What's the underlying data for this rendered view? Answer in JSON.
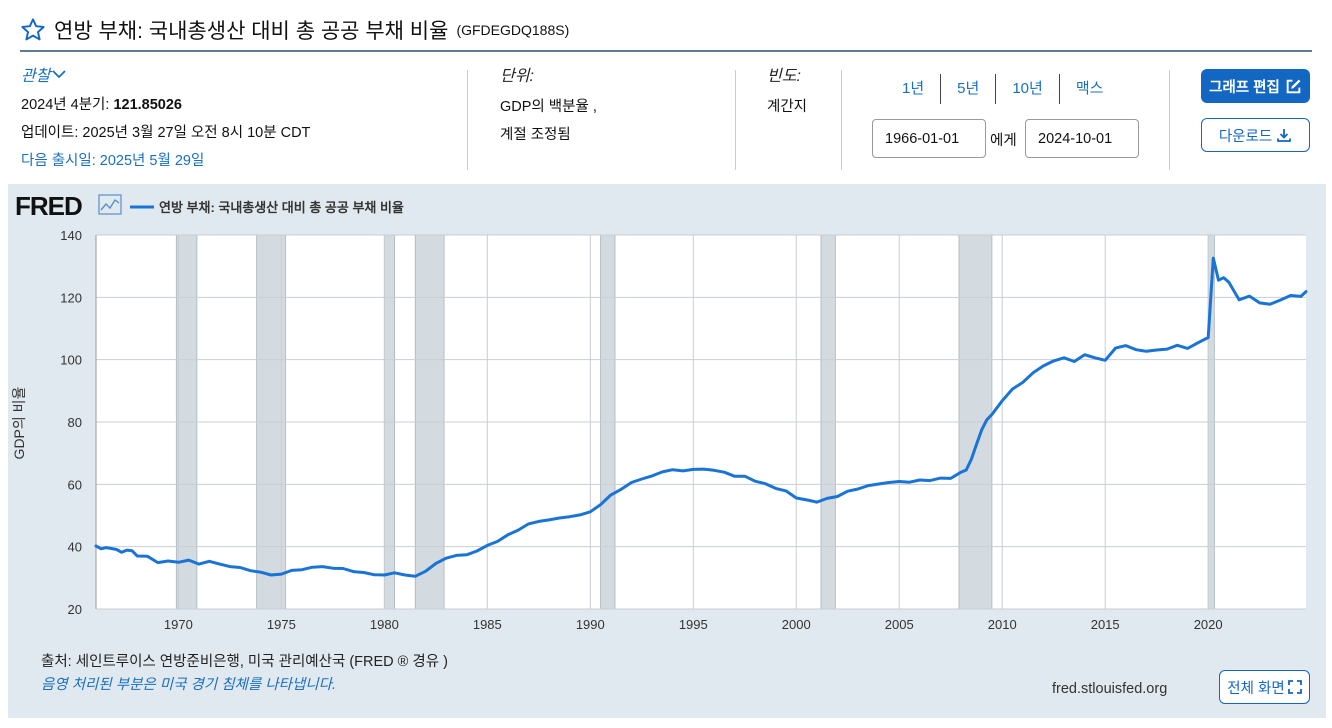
{
  "header": {
    "title": "연방 부채: 국내총생산 대비 총 공공 부채 비율",
    "series_code": "(GFDEGDQ188S)"
  },
  "observation": {
    "label": "관찰",
    "period_label": "2024년 4분기:",
    "value": "121.85026",
    "updated": "업데이트: 2025년 3월 27일 오전 8시 10분 CDT",
    "next_release": "다음 출시일: 2025년 5월 29일"
  },
  "units": {
    "label": "단위:",
    "line1": "GDP의 백분율 ,",
    "line2": "계절 조정됨"
  },
  "frequency": {
    "label": "빈도:",
    "value": "계간지"
  },
  "range_buttons": [
    "1년",
    "5년",
    "10년",
    "맥스"
  ],
  "date_range": {
    "start": "1966-01-01",
    "to_label": "에게",
    "end": "2024-10-01"
  },
  "actions": {
    "edit_graph": "그래프 편집",
    "download": "다운로드",
    "fullscreen": "전체 화면"
  },
  "footer": {
    "source": "출처: 세인트루이스 연방준비은행, 미국 관리예산국 (FRED ® 경유 )",
    "recession_note": "음영 처리된 부분은 미국 경기 침체를 나타냅니다.",
    "url": "fred.stlouisfed.org"
  },
  "colors": {
    "line": "#1a74d6",
    "recession": "#d3dae0",
    "plot_bg": "#ffffff",
    "panel_bg": "#e1e9f0",
    "accent": "#1466c3"
  },
  "chart_data": {
    "type": "line",
    "logo": "FRED",
    "legend": "연방 부채: 국내총생산 대비 총 공공 부채 비율",
    "ylabel": "GDP의 비율",
    "ylim": [
      20,
      140
    ],
    "xlim": [
      1966.0,
      2024.75
    ],
    "y_ticks": [
      20,
      40,
      60,
      80,
      100,
      120,
      140
    ],
    "x_ticks": [
      1970,
      1975,
      1980,
      1985,
      1990,
      1995,
      2000,
      2005,
      2010,
      2015,
      2020
    ],
    "recessions": [
      [
        1969.9,
        1970.9
      ],
      [
        1973.8,
        1975.2
      ],
      [
        1980.0,
        1980.5
      ],
      [
        1981.5,
        1982.9
      ],
      [
        1990.5,
        1991.2
      ],
      [
        2001.2,
        2001.9
      ],
      [
        2007.9,
        2009.5
      ],
      [
        2020.0,
        2020.3
      ]
    ],
    "series": [
      {
        "name": "연방 부채: 국내총생산 대비 총 공공 부채 비율",
        "x": [
          1966.0,
          1966.25,
          1966.5,
          1966.75,
          1967.0,
          1967.25,
          1967.5,
          1967.75,
          1968.0,
          1968.5,
          1969.0,
          1969.5,
          1970.0,
          1970.5,
          1971.0,
          1971.5,
          1972.0,
          1972.5,
          1973.0,
          1973.5,
          1974.0,
          1974.5,
          1975.0,
          1975.5,
          1976.0,
          1976.5,
          1977.0,
          1977.5,
          1978.0,
          1978.5,
          1979.0,
          1979.5,
          1980.0,
          1980.5,
          1981.0,
          1981.5,
          1982.0,
          1982.5,
          1983.0,
          1983.5,
          1984.0,
          1984.5,
          1985.0,
          1985.5,
          1986.0,
          1986.5,
          1987.0,
          1987.5,
          1988.0,
          1988.5,
          1989.0,
          1989.5,
          1990.0,
          1990.5,
          1991.0,
          1991.5,
          1992.0,
          1992.5,
          1993.0,
          1993.5,
          1994.0,
          1994.5,
          1995.0,
          1995.5,
          1996.0,
          1996.5,
          1997.0,
          1997.5,
          1998.0,
          1998.5,
          1999.0,
          1999.5,
          2000.0,
          2000.5,
          2001.0,
          2001.5,
          2002.0,
          2002.5,
          2003.0,
          2003.5,
          2004.0,
          2004.5,
          2005.0,
          2005.5,
          2006.0,
          2006.5,
          2007.0,
          2007.5,
          2008.0,
          2008.25,
          2008.5,
          2008.75,
          2009.0,
          2009.25,
          2009.5,
          2010.0,
          2010.5,
          2011.0,
          2011.5,
          2012.0,
          2012.5,
          2013.0,
          2013.5,
          2014.0,
          2014.5,
          2015.0,
          2015.5,
          2016.0,
          2016.5,
          2017.0,
          2017.5,
          2018.0,
          2018.5,
          2019.0,
          2019.5,
          2020.0,
          2020.25,
          2020.5,
          2020.75,
          2021.0,
          2021.5,
          2022.0,
          2022.5,
          2023.0,
          2023.5,
          2024.0,
          2024.5,
          2024.75
        ],
        "values": [
          40.2,
          39.3,
          39.7,
          39.4,
          39.1,
          38.2,
          38.9,
          38.7,
          37.0,
          36.9,
          34.9,
          35.4,
          35.0,
          35.7,
          34.4,
          35.3,
          34.4,
          33.6,
          33.3,
          32.3,
          31.8,
          30.9,
          31.2,
          32.4,
          32.6,
          33.4,
          33.6,
          33.1,
          33.0,
          32.0,
          31.7,
          31.0,
          30.9,
          31.6,
          30.9,
          30.5,
          32.1,
          34.6,
          36.3,
          37.2,
          37.4,
          38.6,
          40.4,
          41.7,
          43.8,
          45.3,
          47.3,
          48.1,
          48.6,
          49.2,
          49.6,
          50.2,
          51.2,
          53.5,
          56.6,
          58.4,
          60.6,
          61.7,
          62.7,
          64.0,
          64.7,
          64.3,
          64.8,
          64.9,
          64.5,
          63.9,
          62.6,
          62.6,
          61.0,
          60.2,
          58.7,
          57.9,
          55.6,
          55.0,
          54.3,
          55.5,
          56.1,
          57.8,
          58.5,
          59.6,
          60.1,
          60.6,
          60.9,
          60.7,
          61.4,
          61.2,
          62.0,
          61.9,
          63.9,
          64.6,
          68.0,
          72.8,
          77.4,
          80.7,
          82.4,
          86.8,
          90.6,
          92.7,
          95.8,
          98.0,
          99.6,
          100.6,
          99.4,
          101.6,
          100.6,
          99.8,
          103.7,
          104.5,
          103.2,
          102.7,
          103.1,
          103.4,
          104.6,
          103.6,
          105.4,
          107.1,
          132.6,
          125.5,
          126.3,
          124.9,
          119.2,
          120.4,
          118.2,
          117.8,
          119.1,
          120.6,
          120.3,
          121.85
        ]
      }
    ]
  }
}
